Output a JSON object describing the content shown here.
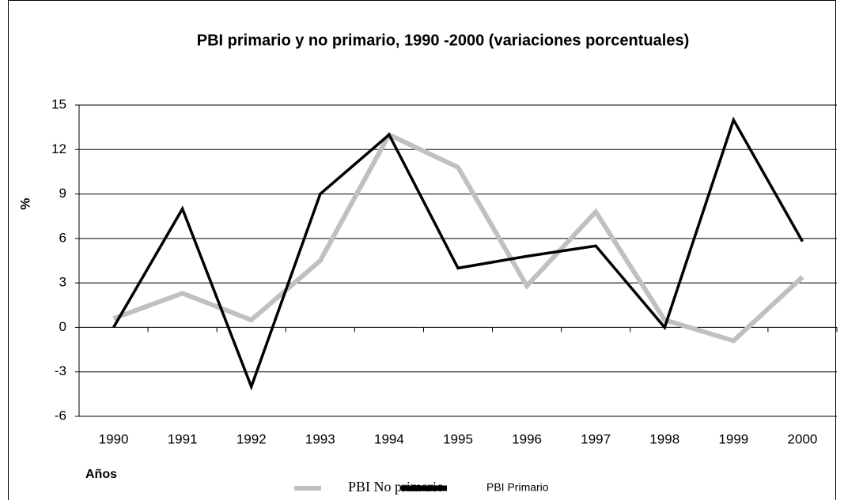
{
  "chart_data": {
    "type": "line",
    "title": "PBI primario y no primario, 1990 -2000 (variaciones porcentuales)",
    "y_label": "%",
    "x_label": "Años",
    "categories": [
      "1990",
      "1991",
      "1992",
      "1993",
      "1994",
      "1995",
      "1996",
      "1997",
      "1998",
      "1999",
      "2000"
    ],
    "series": [
      {
        "name": "PBI No primario",
        "color": "#c0c0c0",
        "values": [
          0.6,
          2.3,
          0.5,
          4.5,
          13,
          10.8,
          2.8,
          7.8,
          0.5,
          -0.9,
          3.4
        ]
      },
      {
        "name": "PBI Primario",
        "color": "#000000",
        "values": [
          0,
          8,
          -4,
          9,
          13,
          4,
          4.8,
          5.5,
          0,
          14,
          5.8
        ]
      }
    ],
    "ylim": [
      -6,
      15
    ],
    "yticks": [
      -6,
      -3,
      0,
      3,
      6,
      9,
      12,
      15
    ],
    "grid": true,
    "legend": "bottom"
  }
}
